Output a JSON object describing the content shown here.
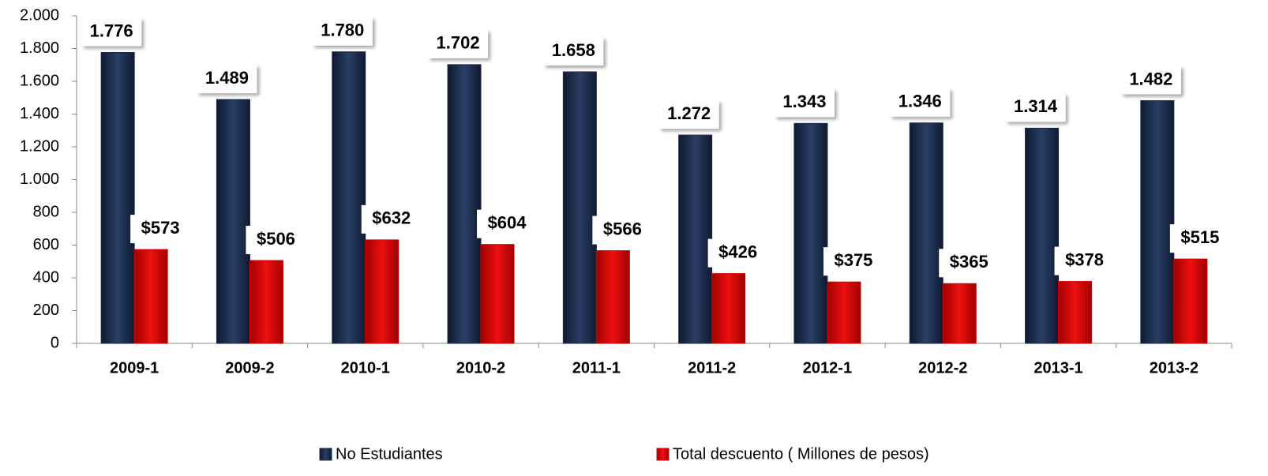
{
  "chart_data": {
    "type": "bar",
    "categories": [
      "2009-1",
      "2009-2",
      "2010-1",
      "2010-2",
      "2011-1",
      "2011-2",
      "2012-1",
      "2012-2",
      "2013-1",
      "2013-2"
    ],
    "series": [
      {
        "name": "No Estudiantes",
        "color": "#1b2c4b",
        "values": [
          1776,
          1489,
          1780,
          1702,
          1658,
          1272,
          1343,
          1346,
          1314,
          1482
        ],
        "value_labels": [
          "1.776",
          "1.489",
          "1.780",
          "1.702",
          "1.658",
          "1.272",
          "1.343",
          "1.346",
          "1.314",
          "1.482"
        ]
      },
      {
        "name": "Total descuento ( Millones de pesos)",
        "color": "#d40000",
        "values": [
          573,
          506,
          632,
          604,
          566,
          426,
          375,
          365,
          378,
          515
        ],
        "value_labels": [
          "$573",
          "$506",
          "$632",
          "$604",
          "$566",
          "$426",
          "$375",
          "$365",
          "$378",
          "$515"
        ]
      }
    ],
    "ylim": [
      0,
      2000
    ],
    "yticks": [
      0,
      200,
      400,
      600,
      800,
      {
        "value": 1000,
        "label": "1.000"
      },
      {
        "value": 1200,
        "label": "1.200"
      },
      {
        "value": 1400,
        "label": "1.400"
      },
      {
        "value": 1600,
        "label": "1.600"
      },
      {
        "value": 1800,
        "label": "1.800"
      },
      {
        "value": 2000,
        "label": "2.000"
      }
    ],
    "legend": "bottom"
  }
}
